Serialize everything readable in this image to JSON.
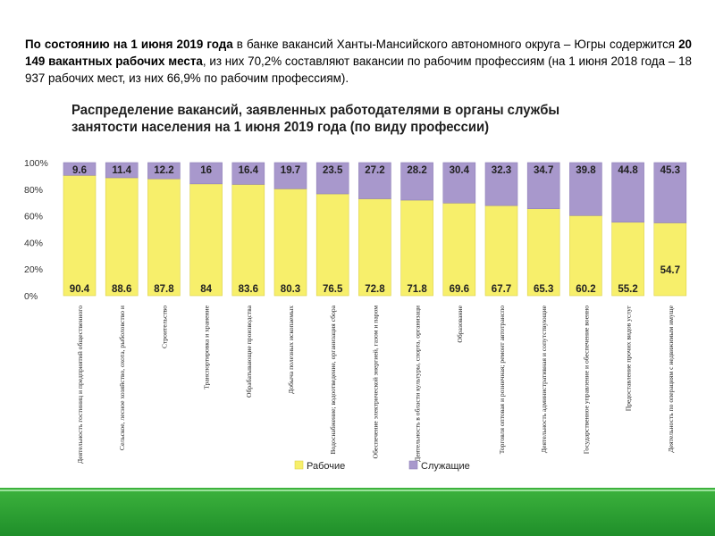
{
  "intro": {
    "p1": "По состоянию на 1 июня 2019 года",
    "p2": " в банке вакансий Ханты-Мансийского автономного округа – Югры содержится ",
    "p3": "20 149 вакантных рабочих места",
    "p4": ", из них 70,2% составляют вакансии по рабочим профессиям (на 1 июня 2018 года – 18 937 рабочих мест, из них 66,9% по рабочим профессиям)."
  },
  "chart_title": {
    "line1": "Распределение вакансий, заявленных работодателями в органы службы",
    "line2": "занятости населения на 1 июня 2019 года (по виду профессии)"
  },
  "chart_data": {
    "type": "bar",
    "stacked": true,
    "title": "Распределение вакансий, заявленных работодателями в органы службы занятости населения на 1 июня 2019 года (по виду профессии)",
    "ylim": [
      0,
      100
    ],
    "yticks": [
      "0%",
      "20%",
      "40%",
      "60%",
      "80%",
      "100%"
    ],
    "categories": [
      "Деятельность гостиниц и предприятий общественного",
      "Сельское, лесное хозяйство, охота, рыболовство и",
      "Строительство",
      "Транспортировка и хранение",
      "Обрабатывающие производства",
      "Добыча полезных ископаемых",
      "Водоснабжение; водоотведение, организация сбора",
      "Обеспечение электрической энергией, газом и паром",
      "Деятельность в области культуры, спорта, организаци",
      "Образование",
      "Торговля оптовая и розничная; ремонт автотранспо",
      "Деятельность административная и сопутствующие",
      "Государственное управление и обеспечение военно",
      "Предоставление прочих видов услуг",
      "Деятельность по операциям с недвижимым имуще"
    ],
    "series": [
      {
        "name": "Рабочие",
        "color": "#f7ef6b",
        "values": [
          90.4,
          88.6,
          87.8,
          84,
          83.6,
          80.3,
          76.5,
          72.8,
          71.8,
          69.6,
          67.7,
          65.3,
          60.2,
          55.2,
          54.7
        ]
      },
      {
        "name": "Служащие",
        "color": "#a898cc",
        "values": [
          9.6,
          11.4,
          12.2,
          16,
          16.4,
          19.7,
          23.5,
          27.2,
          28.2,
          30.4,
          32.3,
          34.7,
          39.8,
          44.8,
          45.3
        ]
      }
    ],
    "legend": "bottom",
    "grid": false
  }
}
